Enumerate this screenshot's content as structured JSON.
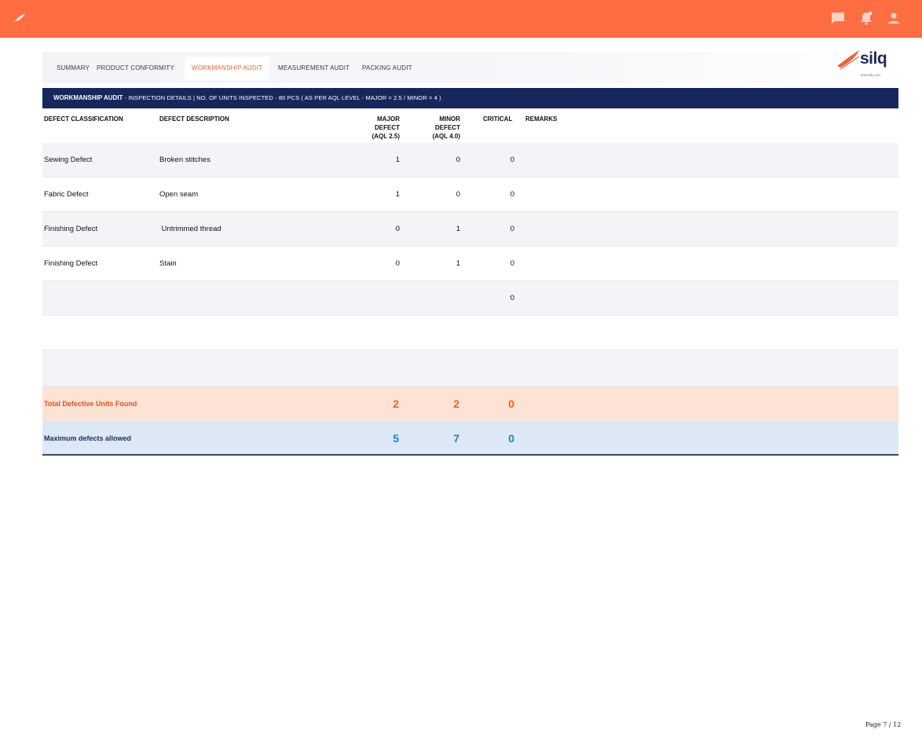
{
  "topbar": {
    "colors": {
      "background": "#ff6d42",
      "icon": "#ffd3c2"
    },
    "icons": [
      "feather-logo-icon",
      "chat-icon",
      "bell-icon",
      "user-icon"
    ]
  },
  "tabs": [
    {
      "label": "SUMMARY",
      "active": false
    },
    {
      "label": "PRODUCT CONFORMITY",
      "active": false
    },
    {
      "label": "WORKMANSHIP AUDIT",
      "active": true
    },
    {
      "label": "MEASUREMENT AUDIT",
      "active": false
    },
    {
      "label": "PACKING AUDIT",
      "active": false
    }
  ],
  "brand": {
    "name": "silq",
    "tagline": "smesilq.com"
  },
  "section": {
    "title": "WORKMANSHIP AUDIT",
    "detail": " - INSPECTION DETAILS | NO. OF UNITS INSPECTED - 80 PCS ( AS PER AQL LEVEL -  MAJOR = 2.5 / MINOR = 4 )"
  },
  "table": {
    "headers": {
      "classification": "DEFECT CLASSIFICATION",
      "description": "DEFECT DESCRIPTION",
      "major": [
        "MAJOR",
        "DEFECT",
        "(AQL 2.5)"
      ],
      "minor": [
        "MINOR",
        "DEFECT",
        "(AQL 4.0)"
      ],
      "critical": "CRITICAL",
      "remarks": "REMARKS"
    },
    "rows": [
      {
        "classification": "Sewing Defect",
        "description": "Broken stitches",
        "major": "1",
        "minor": "0",
        "critical": "0",
        "remarks": ""
      },
      {
        "classification": "Fabric Defect",
        "description": "Open seam",
        "major": "1",
        "minor": "0",
        "critical": "0",
        "remarks": ""
      },
      {
        "classification": "Finishing Defect",
        "description": " Untrimmed thread",
        "major": "0",
        "minor": "1",
        "critical": "0",
        "remarks": ""
      },
      {
        "classification": "Finishing Defect",
        "description": "Stain",
        "major": "0",
        "minor": "1",
        "critical": "0",
        "remarks": ""
      },
      {
        "classification": "",
        "description": "",
        "major": "",
        "minor": "",
        "critical": "0",
        "remarks": ""
      },
      {
        "classification": "",
        "description": "",
        "major": "",
        "minor": "",
        "critical": "",
        "remarks": ""
      },
      {
        "classification": "",
        "description": "",
        "major": "",
        "minor": "",
        "critical": "",
        "remarks": ""
      }
    ],
    "total": {
      "label": "Total Defective Units Found",
      "major": "2",
      "minor": "2",
      "critical": "0"
    },
    "maximum": {
      "label": "Maximum defects allowed",
      "major": "5",
      "minor": "7",
      "critical": "0"
    }
  },
  "page": {
    "label": "Page 7 / 12"
  }
}
